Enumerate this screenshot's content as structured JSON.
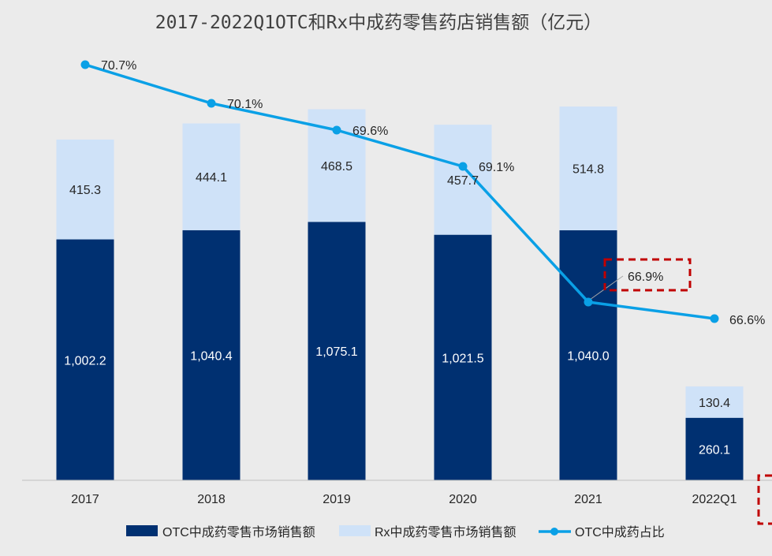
{
  "chart_data": {
    "type": "bar",
    "title": "2017-2022Q1OTC和Rx中成药零售药店销售额（亿元）",
    "categories": [
      "2017",
      "2018",
      "2019",
      "2020",
      "2021",
      "2022Q1"
    ],
    "ylim": [
      0,
      1600
    ],
    "y2lim": [
      60,
      72
    ],
    "series": [
      {
        "name": "OTC中成药零售市场销售额",
        "kind": "bar-stack",
        "color": "#003071",
        "values": [
          1002.2,
          1040.4,
          1075.1,
          1021.5,
          1040.0,
          260.1
        ],
        "labels": [
          "1,002.2",
          "1,040.4",
          "1,075.1",
          "1,021.5",
          "1,040.0",
          "260.1"
        ]
      },
      {
        "name": "Rx中成药零售市场销售额",
        "kind": "bar-stack",
        "color": "#cfe2f8",
        "values": [
          415.3,
          444.1,
          468.5,
          457.7,
          514.8,
          130.4
        ],
        "labels": [
          "415.3",
          "444.1",
          "468.5",
          "457.7",
          "514.8",
          "130.4"
        ]
      },
      {
        "name": "OTC中成药占比",
        "kind": "line",
        "axis": "secondary",
        "color": "#0aa0e6",
        "values": [
          70.7,
          70.1,
          69.6,
          69.1,
          66.9,
          66.6
        ],
        "labels": [
          "70.7%",
          "70.1%",
          "69.6%",
          "69.1%",
          "66.9%",
          "66.6%"
        ]
      }
    ],
    "legend": "bottom",
    "grid": false
  },
  "colors": {
    "background": "#ebebeb",
    "axis": "#bfbfbf",
    "highlight": "#c00000"
  }
}
